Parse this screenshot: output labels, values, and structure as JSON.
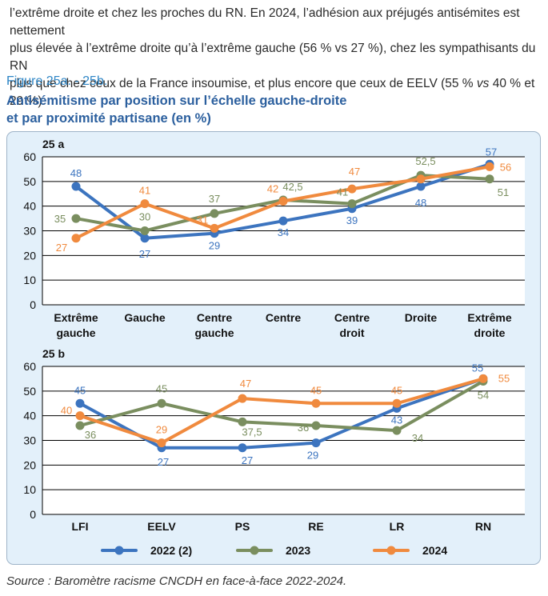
{
  "intro": {
    "line1": "l’extrême droite et chez les proches du RN. En 2024, l’adhésion aux préjugés antisémites est nettement",
    "line2": "plus élevée à l’extrême droite qu’à l’extrême gauche (56 % vs 27 %), chez les sympathisants du RN",
    "line3a": "plus que chez ceux de la France insoumise, et plus encore que ceux de EELV (55 % ",
    "line3vs": "vs",
    "line3b": " 40 % et 29 %)."
  },
  "figure": {
    "label": "Figure 25a. - 25b.",
    "title_line1": "Antisémitisme par position sur l’échelle gauche-droite",
    "title_line2": "et par proximité partisane (en %)"
  },
  "source": "Source : Baromètre racisme CNCDH en face-à-face 2022-2024.",
  "colors": {
    "s2022": "#3c74bf",
    "s2023": "#7a8e5f",
    "s2024": "#f08a3e",
    "grid": "#000000"
  },
  "chart_data": [
    {
      "type": "line",
      "panel_label": "25 a",
      "categories": [
        [
          "Extrême",
          "gauche"
        ],
        [
          "Gauche"
        ],
        [
          "Centre",
          "gauche"
        ],
        [
          "Centre"
        ],
        [
          "Centre",
          "droit"
        ],
        [
          "Droite"
        ],
        [
          "Extrême",
          "droite"
        ]
      ],
      "ylim": [
        0,
        60
      ],
      "yticks": [
        0,
        10,
        20,
        30,
        40,
        50,
        60
      ],
      "series": [
        {
          "name": "2022 (2)",
          "values": [
            48,
            27,
            29,
            34,
            39,
            48,
            57
          ],
          "labels": [
            "48",
            "27",
            "29",
            "34",
            "39",
            "48",
            "57"
          ]
        },
        {
          "name": "2023",
          "values": [
            35,
            30,
            37,
            42.5,
            41,
            52.5,
            51
          ],
          "labels": [
            "35",
            "30",
            "37",
            "42,5",
            "41",
            "52,5",
            "51"
          ]
        },
        {
          "name": "2024",
          "values": [
            27,
            41,
            31,
            42,
            47,
            51,
            56
          ],
          "labels": [
            "27",
            "41",
            "31",
            "42",
            "47",
            "",
            "56"
          ]
        }
      ]
    },
    {
      "type": "line",
      "panel_label": "25 b",
      "categories": [
        [
          "LFI"
        ],
        [
          "EELV"
        ],
        [
          "PS"
        ],
        [
          "RE"
        ],
        [
          "LR"
        ],
        [
          "RN"
        ]
      ],
      "ylim": [
        0,
        60
      ],
      "yticks": [
        0,
        10,
        20,
        30,
        40,
        50,
        60
      ],
      "series": [
        {
          "name": "2022 (2)",
          "values": [
            45,
            27,
            27,
            29,
            43,
            55
          ],
          "labels": [
            "45",
            "27",
            "27",
            "29",
            "43",
            "55"
          ]
        },
        {
          "name": "2023",
          "values": [
            36,
            45,
            37.5,
            36,
            34,
            54
          ],
          "labels": [
            "36",
            "45",
            "37,5",
            "36",
            "34",
            "54"
          ]
        },
        {
          "name": "2024",
          "values": [
            40,
            29,
            47,
            45,
            45,
            55
          ],
          "labels": [
            "40",
            "29",
            "47",
            "45",
            "45",
            "55"
          ]
        }
      ]
    }
  ],
  "legend": [
    "2022 (2)",
    "2023",
    "2024"
  ]
}
